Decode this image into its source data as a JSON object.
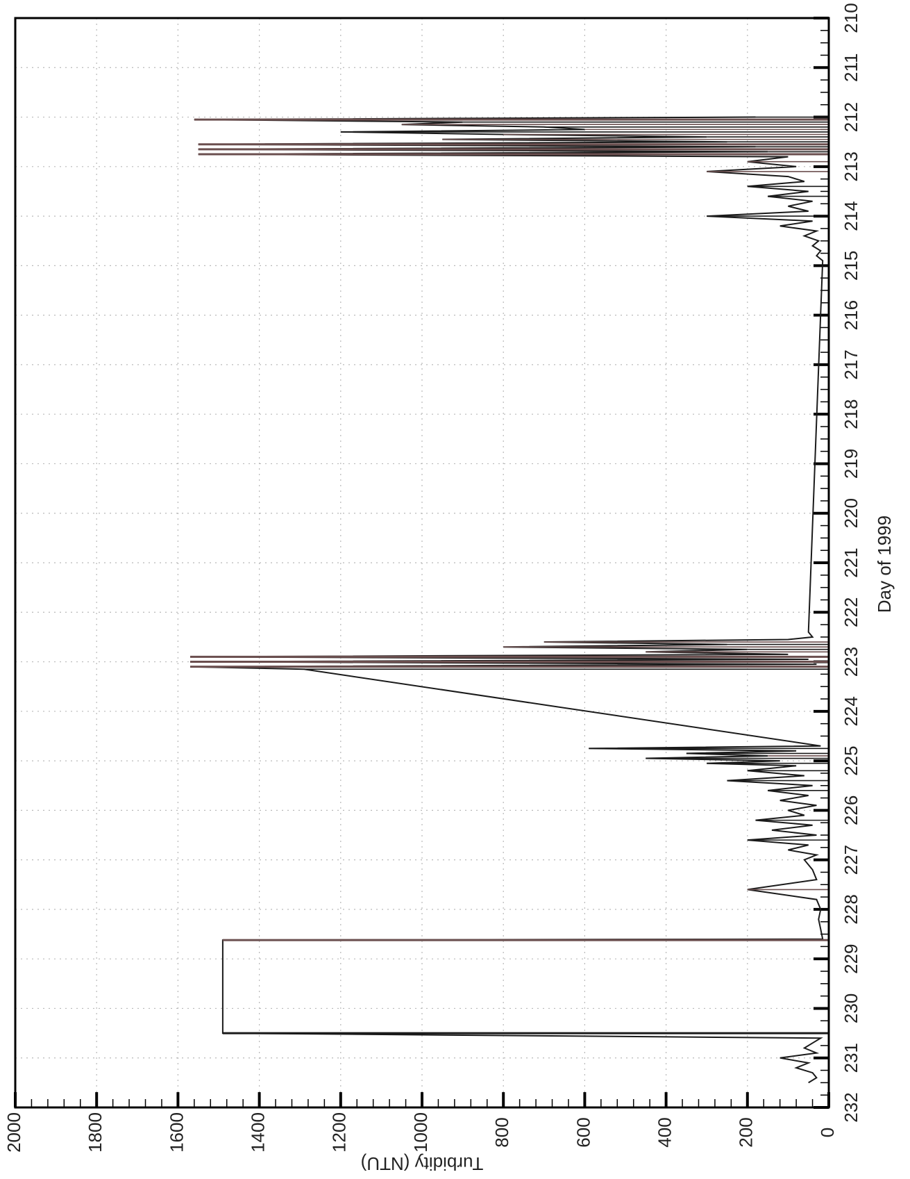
{
  "chart_data": {
    "type": "line",
    "orientation": "rotated-90-clockwise",
    "title": "",
    "xlabel": "Day of 1999",
    "ylabel": "Turbidity (NTU)",
    "xlim": [
      210,
      232
    ],
    "ylim": [
      0,
      2000
    ],
    "x_ticks": [
      "210",
      "211",
      "212",
      "213",
      "214",
      "215",
      "216",
      "217",
      "218",
      "219",
      "220",
      "221",
      "222",
      "223",
      "224",
      "225",
      "226",
      "227",
      "228",
      "229",
      "230",
      "231",
      "232"
    ],
    "y_ticks": [
      "0",
      "200",
      "400",
      "600",
      "800",
      "1000",
      "1200",
      "1400",
      "1600",
      "1800",
      "2000"
    ],
    "grid": true,
    "colors": {
      "line": "#1a1a1a",
      "line_alt": "#6b4f4f",
      "grid": "#b8b8b8",
      "frame": "#000000"
    },
    "series": [
      {
        "values_x": [
          212.0,
          212.05,
          212.1,
          212.15,
          212.2,
          212.25,
          212.3,
          212.35,
          212.4,
          212.45,
          212.5,
          212.55,
          212.6,
          212.65,
          212.7,
          212.75,
          212.8,
          212.9,
          213.0,
          213.1,
          213.2,
          213.3,
          213.4,
          213.5,
          213.6,
          213.7,
          213.8,
          213.9,
          214.0,
          214.1,
          214.2,
          214.3,
          214.4,
          214.5,
          214.6,
          214.7,
          214.8,
          214.9,
          222.4,
          222.5,
          222.55,
          222.6,
          222.65,
          222.7,
          222.75,
          222.8,
          222.85,
          222.9,
          222.95,
          223.0,
          223.05,
          223.1,
          223.15,
          224.7,
          224.75,
          224.8,
          224.85,
          224.9,
          224.95,
          225.0,
          225.05,
          225.1,
          225.2,
          225.3,
          225.4,
          225.5,
          225.6,
          225.7,
          225.8,
          225.9,
          226.0,
          226.1,
          226.2,
          226.3,
          226.4,
          226.5,
          226.6,
          226.7,
          226.8,
          226.9,
          227.0,
          227.2,
          227.4,
          227.6,
          227.8,
          228.0,
          228.2,
          228.4,
          228.6,
          228.62,
          230.5,
          230.6,
          230.7,
          230.8,
          230.9,
          231.0,
          231.1,
          231.2,
          231.3,
          231.4,
          231.5
        ],
        "values_y": [
          180,
          1560,
          900,
          1050,
          700,
          600,
          1200,
          800,
          300,
          950,
          250,
          1550,
          180,
          1550,
          150,
          1550,
          100,
          200,
          80,
          300,
          100,
          60,
          200,
          50,
          150,
          40,
          100,
          50,
          300,
          40,
          120,
          30,
          60,
          25,
          40,
          20,
          30,
          15,
          50,
          40,
          100,
          700,
          250,
          800,
          200,
          450,
          100,
          1570,
          50,
          1570,
          30,
          1570,
          1290,
          20,
          590,
          80,
          350,
          150,
          450,
          120,
          300,
          80,
          200,
          60,
          250,
          40,
          150,
          50,
          120,
          30,
          100,
          60,
          180,
          40,
          140,
          30,
          200,
          50,
          100,
          30,
          60,
          40,
          30,
          200,
          30,
          20,
          25,
          20,
          15,
          1490,
          1490,
          20,
          40,
          60,
          30,
          120,
          50,
          80,
          40,
          30,
          50
        ]
      }
    ]
  }
}
